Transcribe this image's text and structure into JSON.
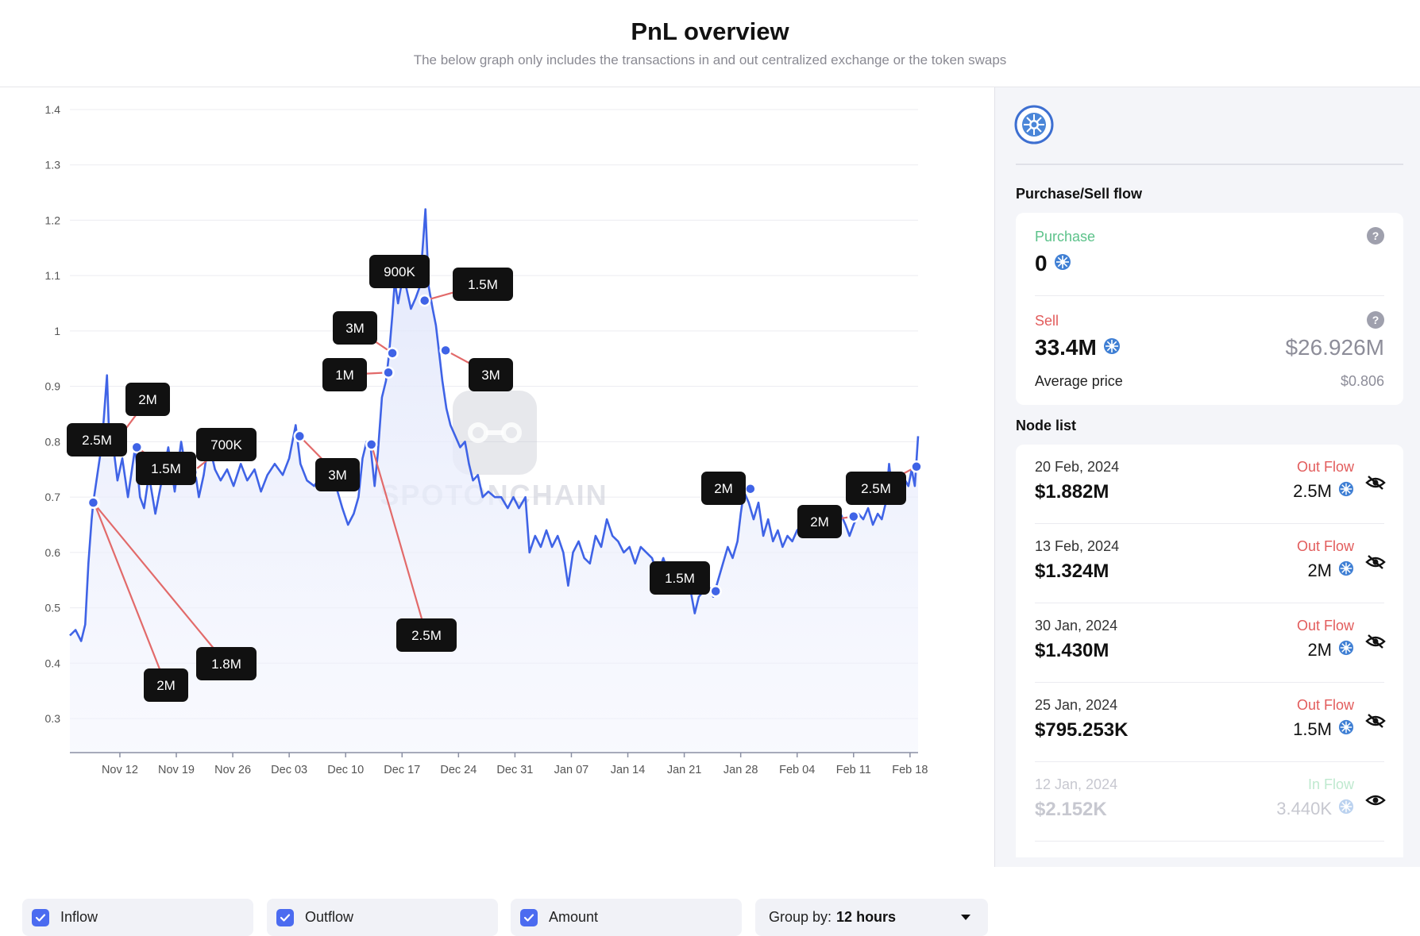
{
  "header": {
    "title": "PnL overview",
    "subtitle": "The below graph only includes the transactions in and out centralized exchange or the token swaps"
  },
  "chart_data": {
    "type": "line",
    "y_ticks": [
      "1.4",
      "1.3",
      "1.2",
      "1.1",
      "1",
      "0.9",
      "0.8",
      "0.7",
      "0.6",
      "0.5",
      "0.4",
      "0.3"
    ],
    "ylim": [
      0.25,
      1.42
    ],
    "x_ticks": [
      "Nov 12",
      "Nov 19",
      "Nov 26",
      "Dec 03",
      "Dec 10",
      "Dec 17",
      "Dec 24",
      "Dec 31",
      "Jan 07",
      "Jan 14",
      "Jan 21",
      "Jan 28",
      "Feb 04",
      "Feb 11",
      "Feb 18"
    ],
    "x_tick_days": [
      0,
      7,
      14,
      21,
      28,
      35,
      42,
      49,
      56,
      63,
      70,
      77,
      84,
      91,
      98
    ],
    "xlim": [
      -6.2,
      99.0
    ],
    "line_color": "#3f63e6",
    "series": [
      {
        "points": [
          [
            -6.2,
            0.45
          ],
          [
            -5.5,
            0.46
          ],
          [
            -4.8,
            0.44
          ],
          [
            -4.3,
            0.47
          ],
          [
            -3.9,
            0.58
          ],
          [
            -3.5,
            0.66
          ],
          [
            -3.3,
            0.69
          ],
          [
            -2.8,
            0.74
          ],
          [
            -2.3,
            0.79
          ],
          [
            -2.0,
            0.84
          ],
          [
            -1.6,
            0.92
          ],
          [
            -1.3,
            0.8
          ],
          [
            -0.8,
            0.79
          ],
          [
            -0.3,
            0.73
          ],
          [
            0.3,
            0.77
          ],
          [
            1.0,
            0.7
          ],
          [
            1.9,
            0.79
          ],
          [
            2.5,
            0.7
          ],
          [
            3.0,
            0.68
          ],
          [
            3.6,
            0.74
          ],
          [
            4.4,
            0.67
          ],
          [
            5.2,
            0.73
          ],
          [
            6.0,
            0.79
          ],
          [
            6.8,
            0.71
          ],
          [
            7.6,
            0.8
          ],
          [
            8.4,
            0.73
          ],
          [
            9.2,
            0.76
          ],
          [
            9.8,
            0.7
          ],
          [
            10.4,
            0.74
          ],
          [
            11.0,
            0.8
          ],
          [
            11.8,
            0.75
          ],
          [
            12.5,
            0.73
          ],
          [
            13.3,
            0.75
          ],
          [
            14.1,
            0.72
          ],
          [
            15.0,
            0.76
          ],
          [
            15.8,
            0.73
          ],
          [
            16.7,
            0.75
          ],
          [
            17.5,
            0.71
          ],
          [
            18.3,
            0.74
          ],
          [
            19.2,
            0.76
          ],
          [
            20.2,
            0.74
          ],
          [
            21.0,
            0.77
          ],
          [
            21.8,
            0.83
          ],
          [
            22.4,
            0.76
          ],
          [
            23.2,
            0.73
          ],
          [
            24.1,
            0.72
          ],
          [
            25.0,
            0.74
          ],
          [
            26.0,
            0.72
          ],
          [
            26.8,
            0.72
          ],
          [
            27.6,
            0.68
          ],
          [
            28.3,
            0.65
          ],
          [
            29.0,
            0.67
          ],
          [
            29.6,
            0.7
          ],
          [
            30.1,
            0.77
          ],
          [
            30.6,
            0.8
          ],
          [
            31.1,
            0.79
          ],
          [
            31.6,
            0.72
          ],
          [
            32.0,
            0.78
          ],
          [
            32.5,
            0.88
          ],
          [
            33.0,
            0.91
          ],
          [
            33.4,
            0.96
          ],
          [
            33.8,
            1.03
          ],
          [
            34.1,
            1.09
          ],
          [
            34.5,
            1.05
          ],
          [
            35.0,
            1.09
          ],
          [
            35.5,
            1.08
          ],
          [
            36.1,
            1.04
          ],
          [
            36.7,
            1.06
          ],
          [
            37.2,
            1.08
          ],
          [
            37.6,
            1.16
          ],
          [
            37.9,
            1.22
          ],
          [
            38.3,
            1.08
          ],
          [
            38.8,
            1.04
          ],
          [
            39.2,
            1.01
          ],
          [
            39.6,
            0.96
          ],
          [
            40.0,
            0.91
          ],
          [
            40.5,
            0.86
          ],
          [
            41.0,
            0.83
          ],
          [
            41.6,
            0.81
          ],
          [
            42.2,
            0.79
          ],
          [
            42.8,
            0.8
          ],
          [
            43.3,
            0.76
          ],
          [
            43.8,
            0.73
          ],
          [
            44.4,
            0.74
          ],
          [
            45.0,
            0.7
          ],
          [
            45.7,
            0.71
          ],
          [
            46.5,
            0.7
          ],
          [
            47.3,
            0.7
          ],
          [
            48.1,
            0.68
          ],
          [
            48.8,
            0.7
          ],
          [
            49.5,
            0.68
          ],
          [
            50.3,
            0.7
          ],
          [
            50.8,
            0.6
          ],
          [
            51.5,
            0.63
          ],
          [
            52.2,
            0.61
          ],
          [
            52.9,
            0.64
          ],
          [
            53.6,
            0.61
          ],
          [
            54.3,
            0.63
          ],
          [
            55.0,
            0.6
          ],
          [
            55.6,
            0.54
          ],
          [
            56.2,
            0.6
          ],
          [
            56.9,
            0.62
          ],
          [
            57.6,
            0.59
          ],
          [
            58.3,
            0.58
          ],
          [
            59.0,
            0.63
          ],
          [
            59.7,
            0.61
          ],
          [
            60.4,
            0.66
          ],
          [
            61.1,
            0.63
          ],
          [
            61.8,
            0.62
          ],
          [
            62.5,
            0.6
          ],
          [
            63.2,
            0.61
          ],
          [
            63.9,
            0.58
          ],
          [
            64.6,
            0.61
          ],
          [
            65.3,
            0.6
          ],
          [
            66.0,
            0.59
          ],
          [
            66.7,
            0.56
          ],
          [
            67.4,
            0.59
          ],
          [
            68.1,
            0.56
          ],
          [
            68.8,
            0.58
          ],
          [
            69.5,
            0.55
          ],
          [
            70.2,
            0.57
          ],
          [
            70.8,
            0.53
          ],
          [
            71.3,
            0.49
          ],
          [
            71.8,
            0.52
          ],
          [
            72.4,
            0.53
          ],
          [
            73.0,
            0.54
          ],
          [
            73.6,
            0.52
          ],
          [
            74.2,
            0.55
          ],
          [
            74.8,
            0.58
          ],
          [
            75.4,
            0.61
          ],
          [
            76.0,
            0.59
          ],
          [
            76.6,
            0.62
          ],
          [
            77.0,
            0.67
          ],
          [
            77.4,
            0.71
          ],
          [
            78.0,
            0.69
          ],
          [
            78.6,
            0.66
          ],
          [
            79.2,
            0.69
          ],
          [
            79.8,
            0.63
          ],
          [
            80.4,
            0.66
          ],
          [
            81.0,
            0.62
          ],
          [
            81.6,
            0.64
          ],
          [
            82.2,
            0.61
          ],
          [
            82.8,
            0.63
          ],
          [
            83.4,
            0.62
          ],
          [
            84.0,
            0.64
          ],
          [
            84.6,
            0.65
          ],
          [
            85.2,
            0.67
          ],
          [
            85.8,
            0.66
          ],
          [
            86.4,
            0.68
          ],
          [
            87.0,
            0.67
          ],
          [
            87.6,
            0.66
          ],
          [
            88.2,
            0.64
          ],
          [
            88.8,
            0.66
          ],
          [
            89.4,
            0.67
          ],
          [
            90.0,
            0.65
          ],
          [
            90.5,
            0.63
          ],
          [
            91.0,
            0.65
          ],
          [
            91.6,
            0.67
          ],
          [
            92.2,
            0.66
          ],
          [
            92.8,
            0.68
          ],
          [
            93.4,
            0.65
          ],
          [
            94.0,
            0.67
          ],
          [
            94.5,
            0.66
          ],
          [
            95.0,
            0.69
          ],
          [
            95.4,
            0.76
          ],
          [
            95.8,
            0.71
          ],
          [
            96.2,
            0.74
          ],
          [
            96.6,
            0.72
          ],
          [
            97.0,
            0.74
          ],
          [
            97.4,
            0.73
          ],
          [
            97.8,
            0.72
          ],
          [
            98.2,
            0.75
          ],
          [
            98.6,
            0.72
          ],
          [
            99.0,
            0.81
          ]
        ]
      }
    ],
    "annotations": [
      {
        "label": "2.5M",
        "day": -1.9,
        "y": 0.79,
        "box": [
          122,
          444
        ]
      },
      {
        "label": "2M",
        "day": -1.1,
        "y": 0.788,
        "box": [
          186,
          393
        ]
      },
      {
        "label": "1.5M",
        "day": 2.1,
        "y": 0.79,
        "box": [
          209,
          480
        ]
      },
      {
        "label": "700K",
        "day": 9.0,
        "y": 0.745,
        "box": [
          285,
          450
        ]
      },
      {
        "label": "2M",
        "day": -3.2,
        "y": 0.69,
        "box": [
          209,
          753
        ]
      },
      {
        "label": "1.8M",
        "day": -3.3,
        "y": 0.69,
        "box": [
          285,
          726
        ]
      },
      {
        "label": "3M",
        "day": 22.3,
        "y": 0.81,
        "box": [
          425,
          488
        ]
      },
      {
        "label": "1M",
        "day": 33.3,
        "y": 0.925,
        "box": [
          434,
          362
        ]
      },
      {
        "label": "3M",
        "day": 33.8,
        "y": 0.96,
        "box": [
          447,
          303
        ]
      },
      {
        "label": "2.5M",
        "day": 31.2,
        "y": 0.795,
        "box": [
          537,
          690
        ]
      },
      {
        "label": "900K",
        "day": 36.1,
        "y": 1.09,
        "box": [
          503,
          232
        ]
      },
      {
        "label": "1.5M",
        "day": 37.8,
        "y": 1.055,
        "box": [
          608,
          248
        ]
      },
      {
        "label": "3M",
        "day": 40.4,
        "y": 0.965,
        "box": [
          618,
          362
        ]
      },
      {
        "label": "1.5M",
        "day": 73.9,
        "y": 0.53,
        "box": [
          856,
          618
        ]
      },
      {
        "label": "2M",
        "day": 78.2,
        "y": 0.715,
        "box": [
          911,
          505
        ]
      },
      {
        "label": "2M",
        "day": 91.0,
        "y": 0.665,
        "box": [
          1032,
          547
        ]
      },
      {
        "label": "2.5M",
        "day": 98.8,
        "y": 0.755,
        "box": [
          1103,
          505
        ]
      }
    ]
  },
  "controls": {
    "inflow_label": "Inflow",
    "outflow_label": "Outflow",
    "amount_label": "Amount",
    "groupby_label": "Group by:",
    "groupby_value": "12 hours"
  },
  "side": {
    "flow_title": "Purchase/Sell flow",
    "purchase_label": "Purchase",
    "purchase_value": "0",
    "sell_label": "Sell",
    "sell_value": "33.4M",
    "sell_usd": "$26.926M",
    "avg_label": "Average price",
    "avg_value": "$0.806",
    "help_glyph": "?",
    "node_title": "Node list",
    "nodes": [
      {
        "date": "20 Feb, 2024",
        "value": "$1.882M",
        "flow": "Out Flow",
        "amount": "2.5M"
      },
      {
        "date": "13 Feb, 2024",
        "value": "$1.324M",
        "flow": "Out Flow",
        "amount": "2M"
      },
      {
        "date": "30 Jan, 2024",
        "value": "$1.430M",
        "flow": "Out Flow",
        "amount": "2M"
      },
      {
        "date": "25 Jan, 2024",
        "value": "$795.253K",
        "flow": "Out Flow",
        "amount": "1.5M"
      },
      {
        "date": "12 Jan, 2024",
        "value": "$2.152K",
        "flow": "In Flow",
        "amount": "3.440K"
      }
    ]
  },
  "colors": {
    "accent": "#4b6bf0",
    "out_flow": "#e25c5c",
    "in_flow": "#36b37e",
    "purchase": "#5cc28a"
  }
}
